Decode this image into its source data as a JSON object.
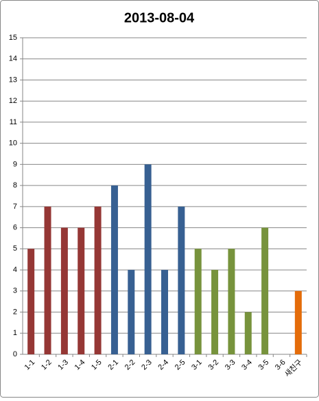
{
  "chart_data": {
    "type": "bar",
    "title": "2013-08-04",
    "categories": [
      "1-1",
      "1-2",
      "1-3",
      "1-4",
      "1-5",
      "2-1",
      "2-2",
      "2-3",
      "2-4",
      "2-5",
      "3-1",
      "3-2",
      "3-3",
      "3-4",
      "3-5",
      "3-6",
      "새친구"
    ],
    "values": [
      5,
      7,
      6,
      6,
      7,
      8,
      4,
      9,
      4,
      7,
      5,
      4,
      5,
      2,
      6,
      null,
      3
    ],
    "colors": [
      "#953735",
      "#953735",
      "#953735",
      "#953735",
      "#953735",
      "#376092",
      "#376092",
      "#376092",
      "#376092",
      "#376092",
      "#77933c",
      "#77933c",
      "#77933c",
      "#77933c",
      "#77933c",
      "#77933c",
      "#e46c0a"
    ],
    "ylim": [
      0,
      15
    ],
    "yticks": [
      0,
      1,
      2,
      3,
      4,
      5,
      6,
      7,
      8,
      9,
      10,
      11,
      12,
      13,
      14,
      15
    ],
    "grid": true
  }
}
